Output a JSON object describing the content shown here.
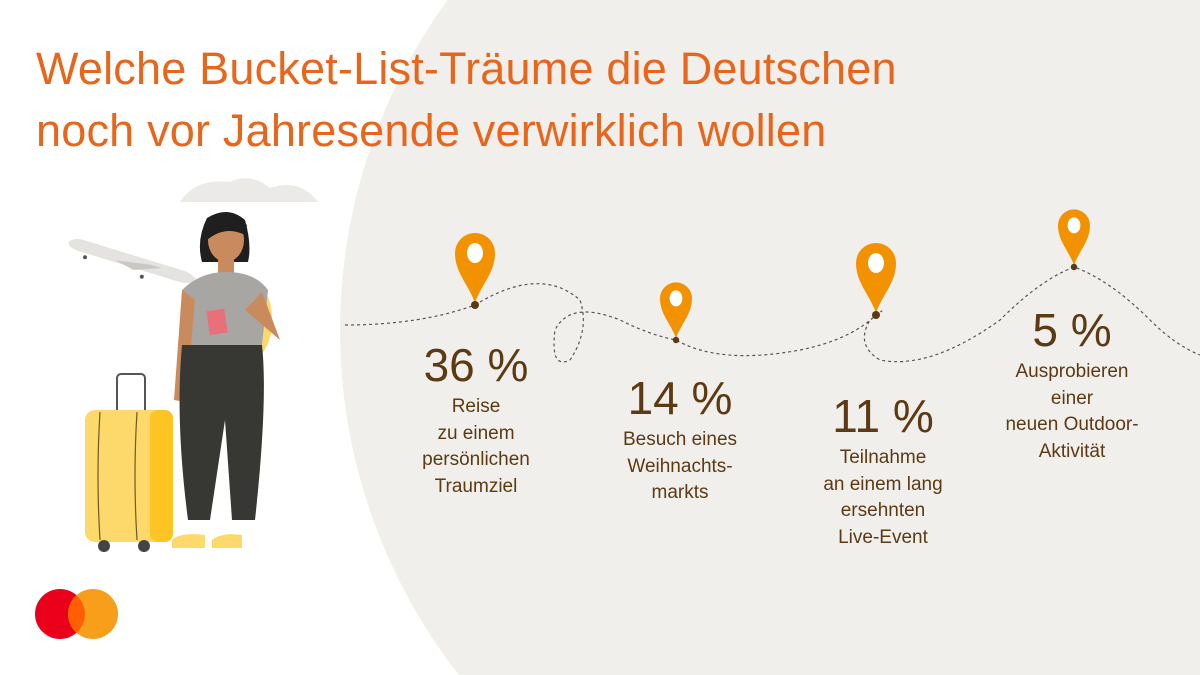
{
  "title": {
    "line1": "Welche Bucket-List-Träume die Deutschen",
    "line2": "noch vor Jahresende verwirklich wollen"
  },
  "colors": {
    "title": "#e8661c",
    "pin": "#f39200",
    "text": "#5b3a14",
    "background_circle": "#f0efeb"
  },
  "chart_data": {
    "type": "bar",
    "title": "Welche Bucket-List-Träume die Deutschen noch vor Jahresende verwirklich wollen",
    "unit": "%",
    "categories": [
      "Reise zu einem persönlichen Traumziel",
      "Besuch eines Weihnachtsmarkts",
      "Teilnahme an einem lang ersehnten Live-Event",
      "Ausprobieren einer neuen Outdoor-Aktivität"
    ],
    "values": [
      36,
      14,
      11,
      5
    ],
    "value_labels": [
      "36 %",
      "14 %",
      "11 %",
      "5 %"
    ],
    "label_lines": [
      [
        "Reise",
        "zu einem",
        "persönlichen",
        "Traumziel"
      ],
      [
        "Besuch eines",
        "Weihnachts-",
        "markts"
      ],
      [
        "Teilnahme",
        "an einem lang",
        "ersehnten",
        "Live-Event"
      ],
      [
        "Ausprobieren",
        "einer",
        "neuen Outdoor-",
        "Aktivität"
      ]
    ]
  },
  "illustration": {
    "icons": [
      "cloud-icon",
      "airplane-icon",
      "traveler-woman-icon",
      "suitcase-icon",
      "map-pin-icon",
      "mastercard-logo"
    ]
  }
}
